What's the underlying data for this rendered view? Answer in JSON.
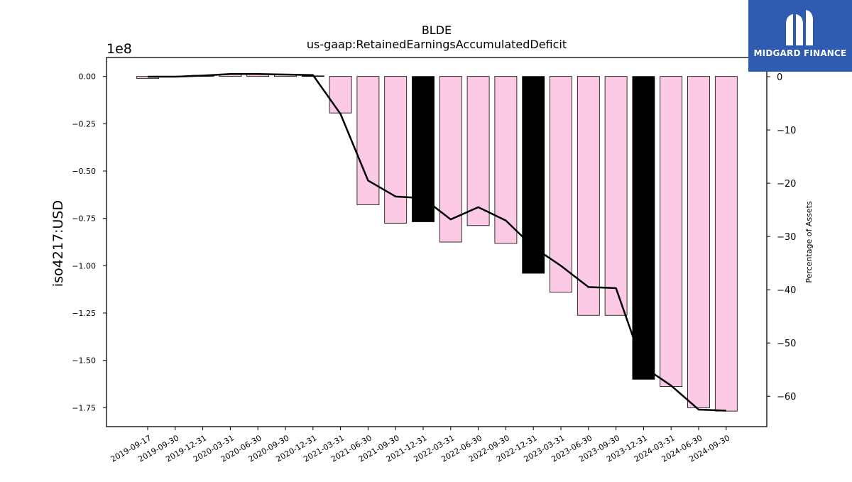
{
  "chart_data": {
    "type": "bar",
    "title": "BLDE",
    "subtitle": "us-gaap:RetainedEarningsAccumulatedDeficit",
    "ylabel": "iso4217:USD",
    "y_offset_label": "1e8",
    "y2label": "Percentage of Assets",
    "categories": [
      "2019-09-17",
      "2019-09-30",
      "2019-12-31",
      "2020-03-31",
      "2020-06-30",
      "2020-09-30",
      "2020-12-31",
      "2021-03-31",
      "2021-06-30",
      "2021-09-30",
      "2021-12-31",
      "2022-03-31",
      "2022-06-30",
      "2022-09-30",
      "2022-12-31",
      "2023-03-31",
      "2023-06-30",
      "2023-09-30",
      "2023-12-31",
      "2024-03-31",
      "2024-06-30",
      "2024-09-30"
    ],
    "values": [
      -0.01,
      -0.002,
      0.006,
      0.012,
      0.013,
      0.01,
      0.003,
      -0.193,
      -0.678,
      -0.775,
      -0.768,
      -0.875,
      -0.788,
      -0.882,
      -1.04,
      -1.14,
      -1.262,
      -1.262,
      -1.6,
      -1.638,
      -1.75,
      -1.768
    ],
    "value_multiplier": 100000000,
    "highlight": [
      false,
      false,
      false,
      false,
      false,
      false,
      false,
      false,
      false,
      false,
      true,
      false,
      false,
      false,
      true,
      false,
      false,
      false,
      true,
      false,
      false,
      false
    ],
    "series": [
      {
        "name": "Percentage of Assets",
        "axis": "right",
        "values": [
          0.0,
          0.0,
          0.2,
          0.5,
          0.5,
          0.4,
          0.3,
          -7.0,
          -19.5,
          -22.5,
          -22.8,
          -26.8,
          -24.5,
          -27.0,
          -32.0,
          -35.5,
          -39.5,
          -39.7,
          -54.5,
          -58.0,
          -62.5,
          -62.7
        ]
      }
    ],
    "ylim": [
      -1.85,
      0.1
    ],
    "y2lim": [
      -65.7,
      3.6
    ],
    "yticks": [
      "0.00",
      "−0.25",
      "−0.50",
      "−0.75",
      "−1.00",
      "−1.25",
      "−1.50",
      "−1.75"
    ],
    "y2ticks": [
      "0",
      "−10",
      "−20",
      "−30",
      "−40",
      "−50",
      "−60"
    ],
    "grid": false,
    "legend": "none",
    "colors": {
      "bar": "#fccae5",
      "bar_highlight": "#000000",
      "line": "#000000"
    }
  },
  "logo": {
    "text": "MIDGARD FINANCE",
    "background": "#2f5bb0"
  }
}
